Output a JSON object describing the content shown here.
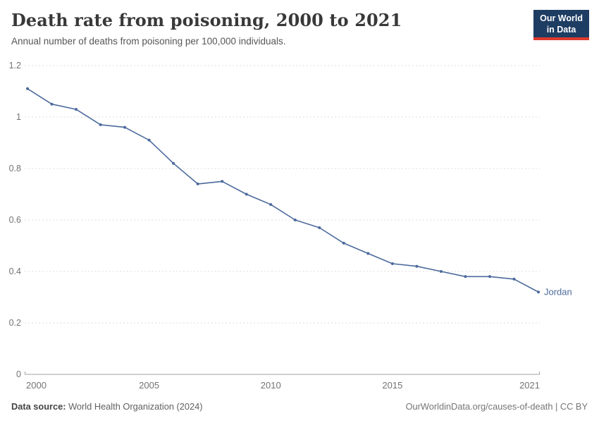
{
  "header": {
    "title": "Death rate from poisoning, 2000 to 2021",
    "subtitle": "Annual number of deaths from poisoning per 100,000 individuals."
  },
  "logo": {
    "line1": "Our World",
    "line2": "in Data",
    "bg_color": "#1d3d63",
    "accent_color": "#dc3a2d"
  },
  "chart_data": {
    "type": "line",
    "title": "Death rate from poisoning, 2000 to 2021",
    "subtitle": "Annual number of deaths from poisoning per 100,000 individuals.",
    "xlabel": "",
    "ylabel": "",
    "x": [
      2000,
      2001,
      2002,
      2003,
      2004,
      2005,
      2006,
      2007,
      2008,
      2009,
      2010,
      2011,
      2012,
      2013,
      2014,
      2015,
      2016,
      2017,
      2018,
      2019,
      2020,
      2021
    ],
    "series": [
      {
        "name": "Jordan",
        "color": "#4C6A9C",
        "values": [
          1.11,
          1.05,
          1.03,
          0.97,
          0.96,
          0.91,
          0.82,
          0.74,
          0.75,
          0.7,
          0.66,
          0.6,
          0.57,
          0.51,
          0.47,
          0.43,
          0.42,
          0.4,
          0.38,
          0.38,
          0.37,
          0.32
        ]
      }
    ],
    "xlim": [
      2000,
      2021
    ],
    "ylim": [
      0,
      1.2
    ],
    "yticks": [
      {
        "value": 0,
        "label": "0"
      },
      {
        "value": 0.2,
        "label": "0.2"
      },
      {
        "value": 0.4,
        "label": "0.4"
      },
      {
        "value": 0.6,
        "label": "0.6"
      },
      {
        "value": 0.8,
        "label": "0.8"
      },
      {
        "value": 1,
        "label": "1"
      },
      {
        "value": 1.2,
        "label": "1.2"
      }
    ],
    "xticks": [
      {
        "value": 2000,
        "label": "2000"
      },
      {
        "value": 2005,
        "label": "2005"
      },
      {
        "value": 2010,
        "label": "2010"
      },
      {
        "value": 2015,
        "label": "2015"
      },
      {
        "value": 2021,
        "label": "2021"
      }
    ],
    "grid": "horizontal-dashed",
    "legend_position": "end-of-line-label",
    "end_label": "Jordan",
    "colors": {
      "gridline": "#dcdcdc",
      "axis_line": "#a3a3a3",
      "tick_text": "#737373"
    }
  },
  "footer": {
    "data_source_label": "Data source:",
    "data_source_value": " World Health Organization (2024)",
    "attribution": "OurWorldinData.org/causes-of-death | CC BY"
  }
}
